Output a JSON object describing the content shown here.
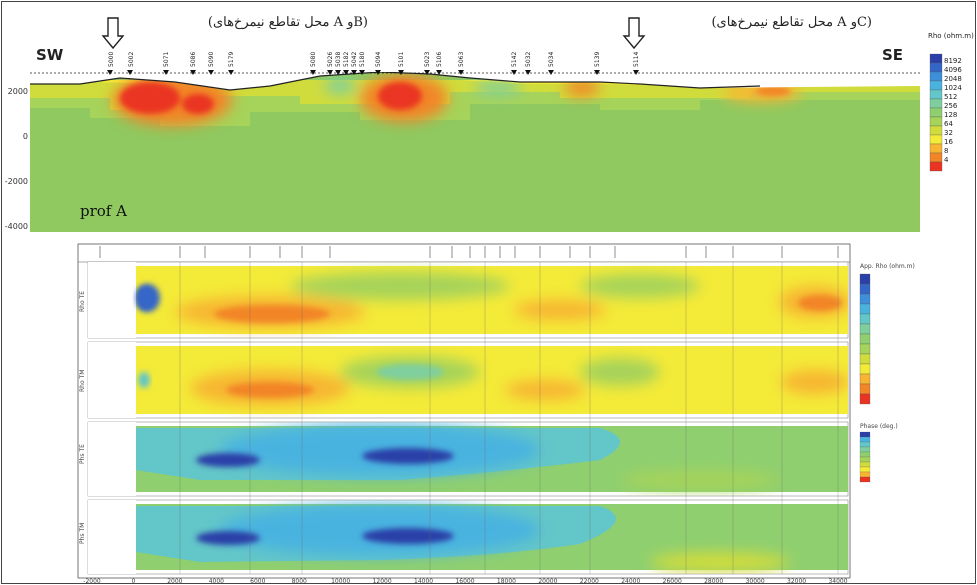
{
  "top_section": {
    "left_label": "SW",
    "right_label": "SE",
    "intersection_left": "(محل تقاطع نیمرخ‌های A وB)",
    "intersection_right": "(محل تقاطع نیمرخ‌های A وC)",
    "profile_label": "prof A",
    "y_ticks": [
      "2000",
      "0",
      "-2000",
      "-4000"
    ],
    "stations": [
      "5000",
      "5002",
      "5071",
      "5086",
      "5090",
      "5179",
      "5080",
      "5026",
      "5038",
      "5182",
      "5042",
      "5180",
      "5094",
      "5101",
      "5023",
      "5106",
      "5063",
      "5142",
      "5032",
      "5034",
      "5139",
      "5114"
    ],
    "legend": {
      "title": "Rho (ohm.m)",
      "values": [
        "8192",
        "4096",
        "2048",
        "1024",
        "512",
        "256",
        "128",
        "64",
        "32",
        "16",
        "8",
        "4"
      ],
      "colors": [
        "#2b3fa8",
        "#3466c8",
        "#3c8fd8",
        "#49b3e0",
        "#63c6c8",
        "#7fcf9e",
        "#8fcf70",
        "#a6d35a",
        "#d0dc3c",
        "#f4ea38",
        "#f7b531",
        "#f28527",
        "#ea3423"
      ]
    }
  },
  "bottom_section": {
    "panel_labels": [
      "Rho TE",
      "Rho TM",
      "Phs TE",
      "Phs TM"
    ],
    "legend_rho_title": "App. Rho (ohm.m)",
    "legend_phase_title": "Phase (deg.)",
    "x_ticks": [
      "-2000",
      "0",
      "2000",
      "4000",
      "6000",
      "8000",
      "10000",
      "12000",
      "14000",
      "16000",
      "18000",
      "20000",
      "22000",
      "24000",
      "26000",
      "28000",
      "30000",
      "32000",
      "34000"
    ]
  }
}
